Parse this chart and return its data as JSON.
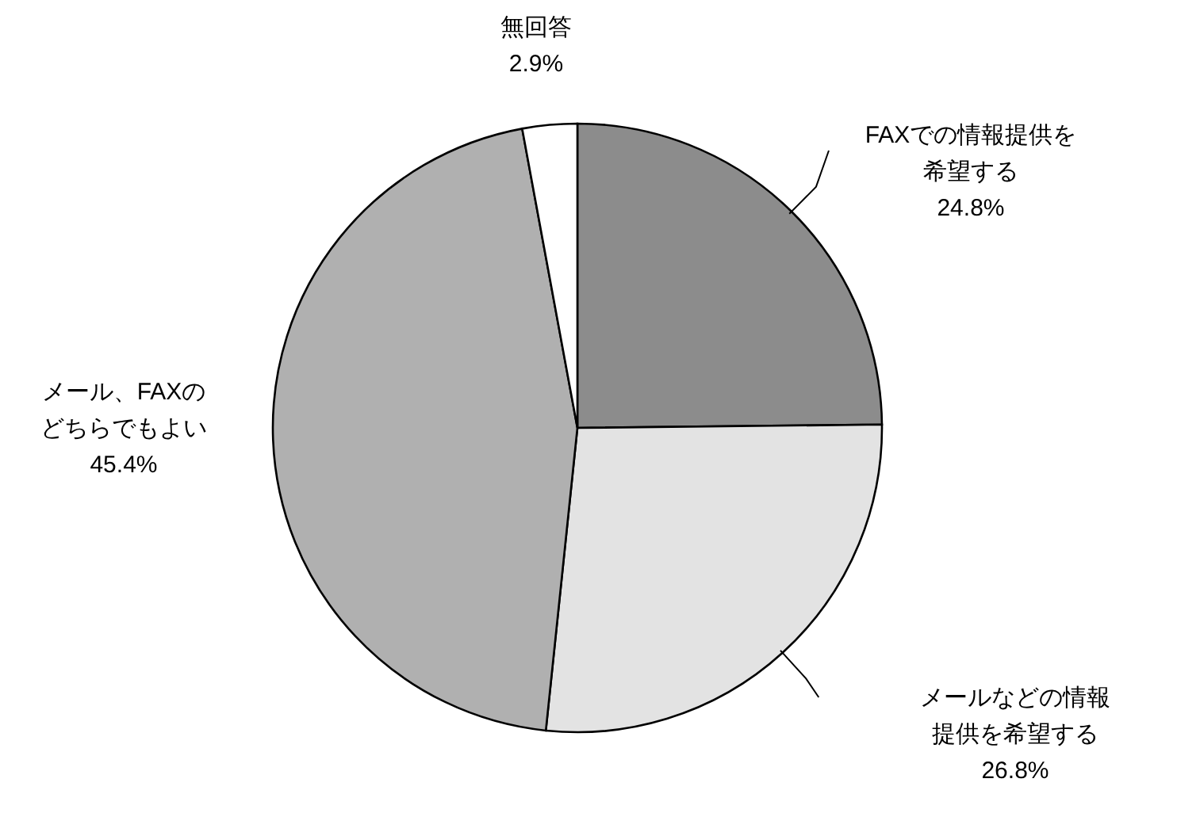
{
  "chart_data": {
    "type": "pie",
    "categories": [
      "FAXでの情報提供を希望する",
      "メールなどの情報提供を希望する",
      "メール、FAXのどちらでもよい",
      "無回答"
    ],
    "values": [
      24.8,
      26.8,
      45.4,
      2.9
    ],
    "colors": [
      "#8c8c8c",
      "#e3e3e3",
      "#b0b0b0",
      "#ffffff"
    ],
    "value_labels": [
      "24.8%",
      "26.8%",
      "45.4%",
      "2.9%"
    ]
  }
}
